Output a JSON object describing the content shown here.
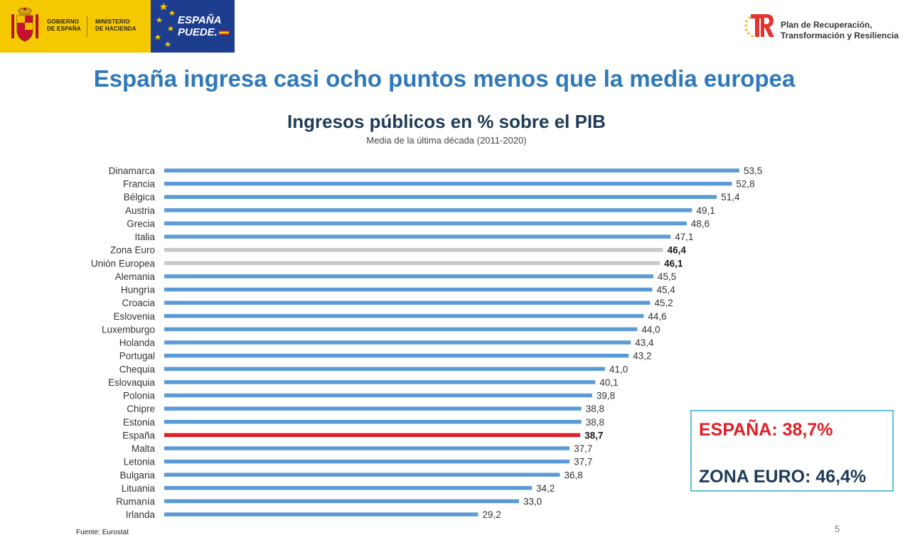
{
  "header": {
    "gov_line1": "GOBIERNO",
    "gov_line2": "DE ESPAÑA",
    "ministry_line1": "MINISTERIO",
    "ministry_line2": "DE HACIENDA",
    "espana_line1": "ESPAÑA",
    "espana_line2": "PUEDE.",
    "plan_line1": "Plan de Recuperación,",
    "plan_line2": "Transformación y Resiliencia",
    "colors": {
      "gov_yellow": "#f6c800",
      "ep_blue": "#1d3d8f",
      "prtr_red": "#e3342f",
      "prtr_gold": "#f3b019"
    }
  },
  "slide_title": "España ingresa casi ocho puntos menos que la media europea",
  "chart_data": {
    "type": "bar",
    "orientation": "horizontal",
    "title": "Ingresos públicos en % sobre el PIB",
    "subtitle": "Media de la última década (2011-2020)",
    "categories": [
      "Dinamarca",
      "Francia",
      "Bélgica",
      "Austria",
      "Grecia",
      "Italia",
      "Zona Euro",
      "Unión Europea",
      "Alemania",
      "Hungría",
      "Croacia",
      "Eslovenia",
      "Luxemburgo",
      "Holanda",
      "Portugal",
      "Chequia",
      "Eslovaquia",
      "Polonia",
      "Chipre",
      "Estonia",
      "España",
      "Malta",
      "Letonia",
      "Bulgaria",
      "Lituania",
      "Rumanía",
      "Irlanda"
    ],
    "values": [
      53.5,
      52.8,
      51.4,
      49.1,
      48.6,
      47.1,
      46.4,
      46.1,
      45.5,
      45.4,
      45.2,
      44.6,
      44.0,
      43.4,
      43.2,
      41.0,
      40.1,
      39.8,
      38.8,
      38.8,
      38.7,
      37.7,
      37.7,
      36.8,
      34.2,
      33.0,
      29.2
    ],
    "value_labels": [
      "53,5",
      "52,8",
      "51,4",
      "49,1",
      "48,6",
      "47,1",
      "46,4",
      "46,1",
      "45,5",
      "45,4",
      "45,2",
      "44,6",
      "44,0",
      "43,4",
      "43,2",
      "41,0",
      "40,1",
      "39,8",
      "38,8",
      "38,8",
      "38,7",
      "37,7",
      "37,7",
      "36,8",
      "34,2",
      "33,0",
      "29,2"
    ],
    "highlight": {
      "España": "#e11d24",
      "Zona Euro": "#c8c8c8",
      "Unión Europea": "#c8c8c8"
    },
    "bold_labels": [
      "Zona Euro",
      "Unión Europea",
      "España"
    ],
    "bar_color": "#5b9bd5",
    "xlim": [
      0,
      53.5
    ],
    "grid": false,
    "legend": "none"
  },
  "callout": {
    "spain": "ESPAÑA: 38,7%",
    "euro": "ZONA EURO: 46,4%",
    "spain_color": "#e11d24",
    "euro_color": "#1f3b57",
    "border_color": "#5cc3d4"
  },
  "source": "Fuente: Eurostat",
  "page_number": "5"
}
